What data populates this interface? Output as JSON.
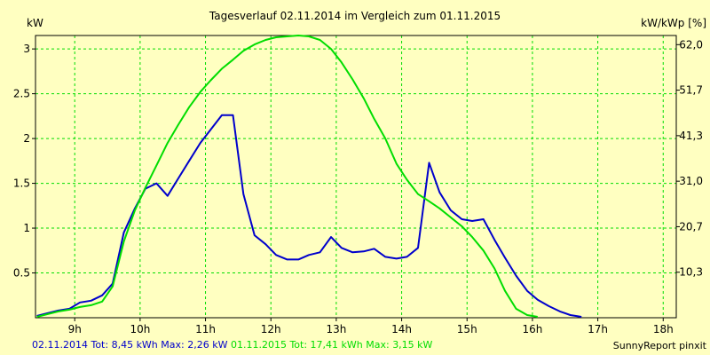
{
  "chart_data": {
    "type": "line",
    "title": "Tagesverlauf 02.11.2014 im Vergleich zum 01.11.2015",
    "ylabel_left": "kW",
    "ylabel_right": "kW/kWp [%]",
    "xlim": [
      8.4,
      18.2
    ],
    "ylim": [
      0,
      3.15
    ],
    "x_ticks": [
      {
        "value": 9,
        "label": "9h"
      },
      {
        "value": 10,
        "label": "10h"
      },
      {
        "value": 11,
        "label": "11h"
      },
      {
        "value": 12,
        "label": "12h"
      },
      {
        "value": 13,
        "label": "13h"
      },
      {
        "value": 14,
        "label": "14h"
      },
      {
        "value": 15,
        "label": "15h"
      },
      {
        "value": 16,
        "label": "16h"
      },
      {
        "value": 17,
        "label": "17h"
      },
      {
        "value": 18,
        "label": "18h"
      }
    ],
    "y_ticks_left": [
      {
        "value": 0.5,
        "label": "0.5"
      },
      {
        "value": 1,
        "label": "1"
      },
      {
        "value": 1.5,
        "label": "1.5"
      },
      {
        "value": 2,
        "label": "2"
      },
      {
        "value": 2.5,
        "label": "2.5"
      },
      {
        "value": 3,
        "label": "3"
      }
    ],
    "y_ticks_right": [
      {
        "value": 0.508,
        "label": "10,3"
      },
      {
        "value": 1.016,
        "label": "20,7"
      },
      {
        "value": 1.524,
        "label": "31,0"
      },
      {
        "value": 2.032,
        "label": "41,3"
      },
      {
        "value": 2.54,
        "label": "51,7"
      },
      {
        "value": 3.048,
        "label": "62,0"
      }
    ],
    "grid": true,
    "series": [
      {
        "color": "#0000cc",
        "points": [
          [
            8.42,
            0.02
          ],
          [
            8.58,
            0.05
          ],
          [
            8.75,
            0.08
          ],
          [
            8.92,
            0.1
          ],
          [
            9.08,
            0.17
          ],
          [
            9.25,
            0.19
          ],
          [
            9.42,
            0.25
          ],
          [
            9.58,
            0.38
          ],
          [
            9.75,
            0.95
          ],
          [
            9.92,
            1.22
          ],
          [
            10.08,
            1.44
          ],
          [
            10.25,
            1.5
          ],
          [
            10.42,
            1.36
          ],
          [
            10.58,
            1.55
          ],
          [
            10.75,
            1.75
          ],
          [
            10.92,
            1.95
          ],
          [
            11.08,
            2.1
          ],
          [
            11.25,
            2.26
          ],
          [
            11.42,
            2.26
          ],
          [
            11.58,
            1.38
          ],
          [
            11.75,
            0.92
          ],
          [
            11.92,
            0.82
          ],
          [
            12.08,
            0.7
          ],
          [
            12.25,
            0.65
          ],
          [
            12.42,
            0.65
          ],
          [
            12.58,
            0.7
          ],
          [
            12.75,
            0.73
          ],
          [
            12.92,
            0.9
          ],
          [
            13.08,
            0.78
          ],
          [
            13.25,
            0.73
          ],
          [
            13.42,
            0.74
          ],
          [
            13.58,
            0.77
          ],
          [
            13.75,
            0.68
          ],
          [
            13.92,
            0.66
          ],
          [
            14.08,
            0.68
          ],
          [
            14.25,
            0.78
          ],
          [
            14.42,
            1.73
          ],
          [
            14.58,
            1.4
          ],
          [
            14.75,
            1.2
          ],
          [
            14.92,
            1.1
          ],
          [
            15.08,
            1.08
          ],
          [
            15.25,
            1.1
          ],
          [
            15.42,
            0.87
          ],
          [
            15.58,
            0.67
          ],
          [
            15.75,
            0.47
          ],
          [
            15.92,
            0.3
          ],
          [
            16.08,
            0.2
          ],
          [
            16.25,
            0.13
          ],
          [
            16.42,
            0.07
          ],
          [
            16.58,
            0.03
          ],
          [
            16.75,
            0.01
          ]
        ]
      },
      {
        "color": "#00dd00",
        "points": [
          [
            8.42,
            0.01
          ],
          [
            8.58,
            0.04
          ],
          [
            8.75,
            0.07
          ],
          [
            8.92,
            0.09
          ],
          [
            9.08,
            0.12
          ],
          [
            9.25,
            0.14
          ],
          [
            9.42,
            0.18
          ],
          [
            9.58,
            0.35
          ],
          [
            9.75,
            0.85
          ],
          [
            9.92,
            1.2
          ],
          [
            10.08,
            1.45
          ],
          [
            10.25,
            1.7
          ],
          [
            10.42,
            1.95
          ],
          [
            10.58,
            2.15
          ],
          [
            10.75,
            2.35
          ],
          [
            10.92,
            2.52
          ],
          [
            11.08,
            2.65
          ],
          [
            11.25,
            2.78
          ],
          [
            11.42,
            2.88
          ],
          [
            11.58,
            2.98
          ],
          [
            11.75,
            3.05
          ],
          [
            11.92,
            3.1
          ],
          [
            12.08,
            3.13
          ],
          [
            12.25,
            3.14
          ],
          [
            12.42,
            3.15
          ],
          [
            12.58,
            3.14
          ],
          [
            12.75,
            3.1
          ],
          [
            12.92,
            3.0
          ],
          [
            13.08,
            2.85
          ],
          [
            13.25,
            2.66
          ],
          [
            13.42,
            2.45
          ],
          [
            13.58,
            2.22
          ],
          [
            13.75,
            2.0
          ],
          [
            13.92,
            1.72
          ],
          [
            14.08,
            1.54
          ],
          [
            14.25,
            1.38
          ],
          [
            14.42,
            1.3
          ],
          [
            14.58,
            1.22
          ],
          [
            14.75,
            1.12
          ],
          [
            14.92,
            1.02
          ],
          [
            15.08,
            0.9
          ],
          [
            15.25,
            0.75
          ],
          [
            15.42,
            0.55
          ],
          [
            15.58,
            0.3
          ],
          [
            15.75,
            0.1
          ],
          [
            15.92,
            0.03
          ],
          [
            16.08,
            0.01
          ]
        ]
      }
    ]
  },
  "footer": {
    "left_blue": "02.11.2014 Tot: 8,45 kWh Max: 2,26 kW",
    "left_green": "01.11.2015 Tot: 17,41 kWh Max: 3,15 kW",
    "credit": "SunnyReport pinxit"
  },
  "colors": {
    "background": "#ffffc1",
    "grid": "#00dd00",
    "blue": "#0000cc",
    "green": "#00dd00"
  }
}
